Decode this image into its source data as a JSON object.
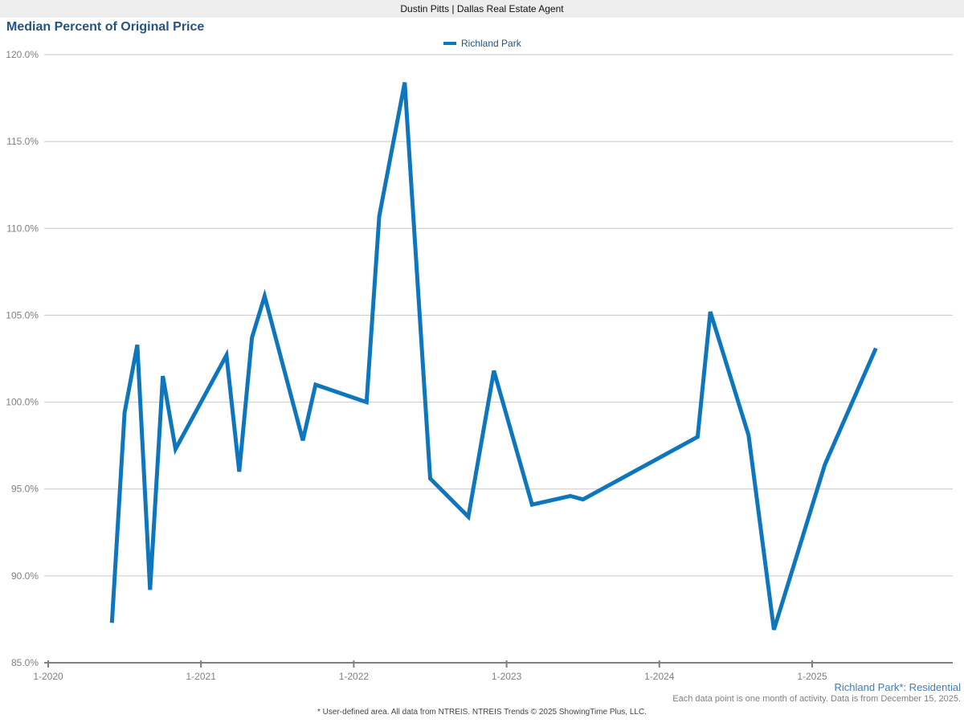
{
  "header": {
    "brand": "Dustin Pitts | Dallas Real Estate Agent"
  },
  "chart": {
    "title": "Median Percent of Original Price",
    "legend": [
      {
        "label": "Richland Park",
        "color": "#0e76bd"
      }
    ]
  },
  "chart_data": {
    "type": "line",
    "title": "Median Percent of Original Price",
    "grid": "horizontal",
    "legend_position": "top-center",
    "ylim": [
      85,
      120
    ],
    "y_ticks": [
      "120.0%",
      "115.0%",
      "110.0%",
      "105.0%",
      "100.0%",
      "95.0%",
      "90.0%",
      "85.0%"
    ],
    "x_ticks": [
      "1-2020",
      "1-2021",
      "1-2022",
      "1-2023",
      "1-2024",
      "1-2025"
    ],
    "x_unit": "month-year",
    "series": [
      {
        "name": "Richland Park",
        "color": "#0e76bd",
        "points": [
          [
            "6-2020",
            87.3
          ],
          [
            "7-2020",
            99.4
          ],
          [
            "8-2020",
            103.3
          ],
          [
            "9-2020",
            89.2
          ],
          [
            "10-2020",
            101.5
          ],
          [
            "11-2020",
            97.3
          ],
          [
            "3-2021",
            102.7
          ],
          [
            "4-2021",
            96.0
          ],
          [
            "5-2021",
            103.7
          ],
          [
            "6-2021",
            106.1
          ],
          [
            "9-2021",
            97.8
          ],
          [
            "10-2021",
            101.0
          ],
          [
            "2-2022",
            100.0
          ],
          [
            "3-2022",
            110.7
          ],
          [
            "5-2022",
            118.4
          ],
          [
            "7-2022",
            95.6
          ],
          [
            "10-2022",
            93.4
          ],
          [
            "12-2022",
            101.8
          ],
          [
            "3-2023",
            94.1
          ],
          [
            "6-2023",
            94.6
          ],
          [
            "7-2023",
            94.4
          ],
          [
            "4-2024",
            98.0
          ],
          [
            "5-2024",
            105.2
          ],
          [
            "8-2024",
            98.1
          ],
          [
            "10-2024",
            86.9
          ],
          [
            "2-2025",
            96.4
          ],
          [
            "6-2025",
            103.1
          ]
        ]
      }
    ]
  },
  "footer": {
    "series_note": "Richland Park*: Residential",
    "data_note": "Each data point is one month of activity. Data is from December 15, 2025.",
    "disclaimer": "* User-defined area. All data from NTREIS. NTREIS Trends © 2025 ShowingTime Plus, LLC."
  },
  "colors": {
    "line": "#0e76bd",
    "title": "#26537f",
    "gridline": "#c7c7c7",
    "axis": "#808080",
    "note_blue": "#3d7cc0"
  }
}
